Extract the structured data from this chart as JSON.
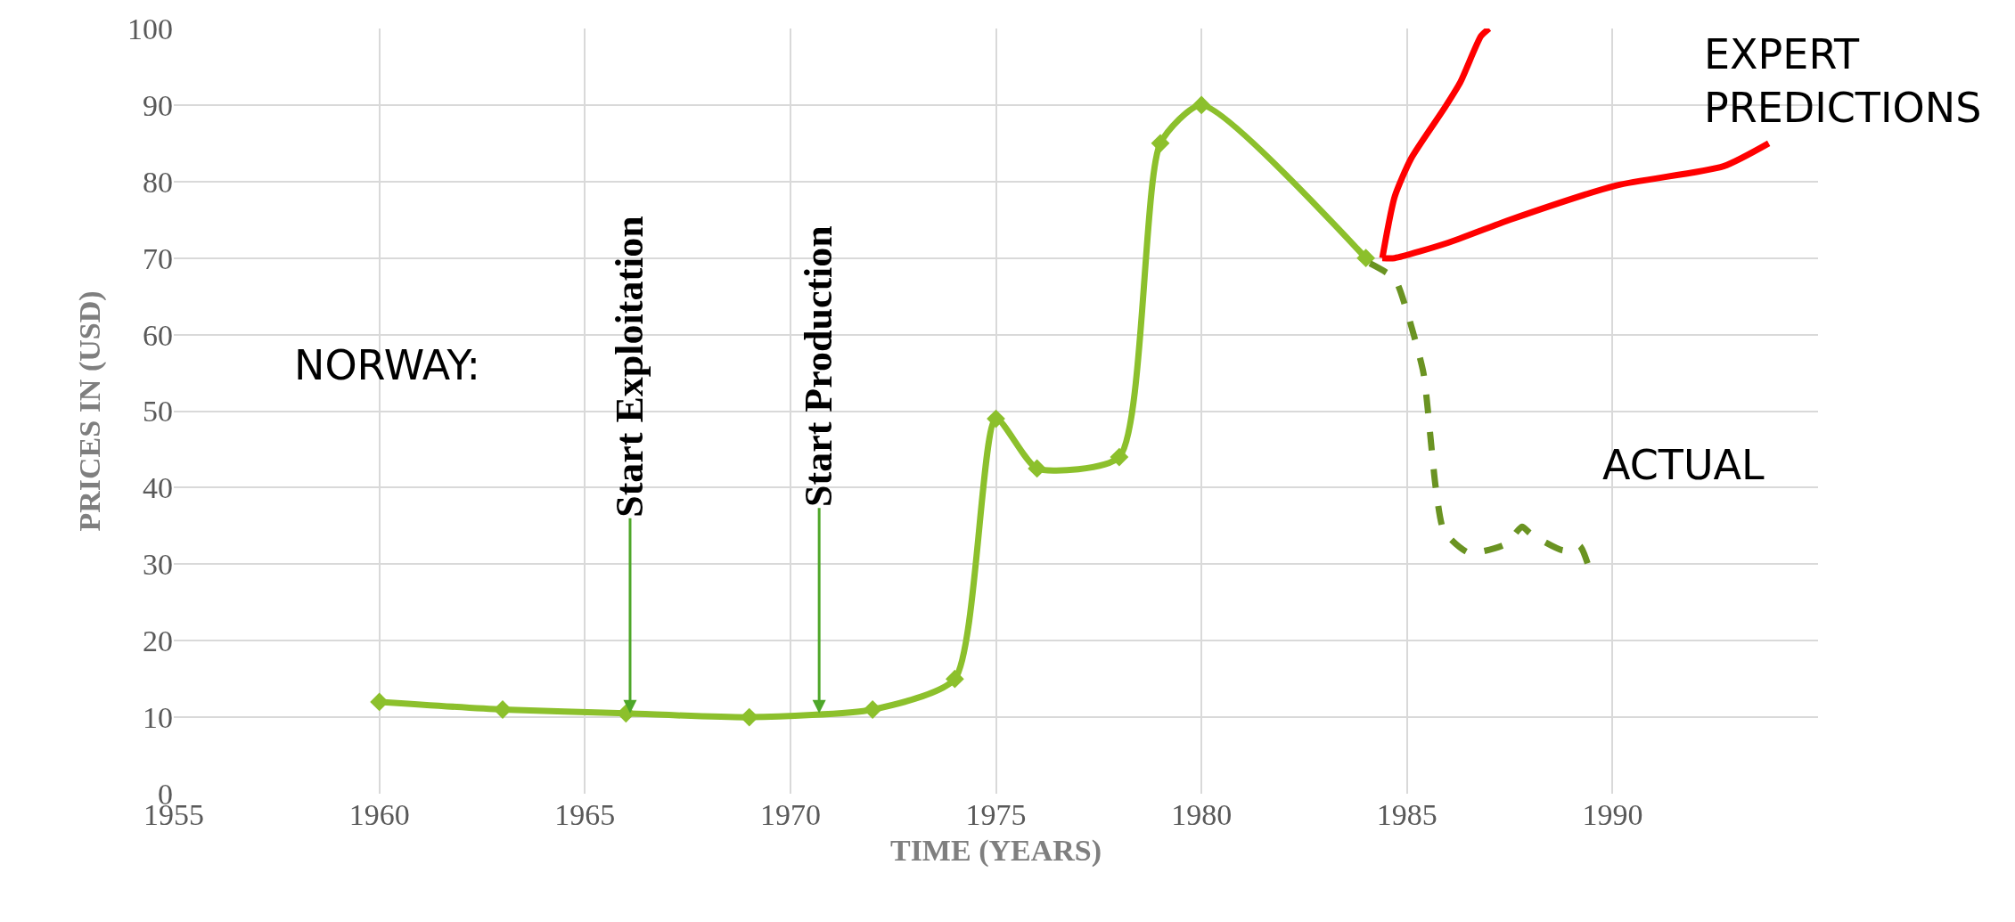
{
  "chart_data": {
    "type": "line",
    "xlabel": "TIME (YEARS)",
    "ylabel": "PRICES IN (USD)",
    "xlim": [
      1955,
      1995
    ],
    "xticks": [
      1955,
      1960,
      1965,
      1970,
      1975,
      1980,
      1985,
      1990
    ],
    "ylim": [
      0,
      100
    ],
    "yticks": [
      0,
      10,
      20,
      30,
      40,
      50,
      60,
      70,
      80,
      90,
      100
    ],
    "grid": true,
    "series": [
      {
        "color": "#8cc02c",
        "marker": "diamond",
        "line_style": "solid",
        "x": [
          1960,
          1963,
          1966,
          1969,
          1972,
          1974,
          1975,
          1976,
          1978,
          1979,
          1980,
          1984
        ],
        "values": [
          12,
          11,
          10.5,
          10,
          11,
          15,
          49,
          42.5,
          44,
          85,
          90,
          70
        ]
      },
      {
        "color": "#6a9322",
        "marker": "none",
        "line_style": "dashed",
        "x": [
          1984.1,
          1984.7,
          1985,
          1985.4,
          1985.6,
          1985.7,
          1985.9,
          1986.5,
          1987.4,
          1987.8,
          1988,
          1988.8,
          1989.2,
          1989.4
        ],
        "values": [
          69.3,
          67.3,
          63,
          55,
          45,
          40,
          34.3,
          31.5,
          32.6,
          34.9,
          34,
          31.8,
          32.4,
          30
        ]
      },
      {
        "color": "#ff0000",
        "marker": "none",
        "line_style": "solid",
        "x": [
          1984.4,
          1984.7,
          1985.1,
          1985.9,
          1986.3,
          1986.8,
          1987
        ],
        "values": [
          70,
          78,
          83,
          89.5,
          93,
          99,
          100
        ]
      },
      {
        "color": "#ff0000",
        "marker": "none",
        "line_style": "solid",
        "x": [
          1984.4,
          1984.7,
          1986,
          1987.5,
          1990.1,
          1992.7,
          1993.8
        ],
        "values": [
          70,
          70,
          72,
          75,
          79.5,
          82,
          85
        ]
      }
    ],
    "annotations": [
      "NORWAY:",
      {
        "text": "Start Exploitation",
        "x": 1966.1,
        "y": 10.5
      },
      {
        "text": "Start Production",
        "x": 1970.7,
        "y": 10.5
      },
      "EXPERT PREDICTIONS",
      "ACTUAL"
    ]
  }
}
